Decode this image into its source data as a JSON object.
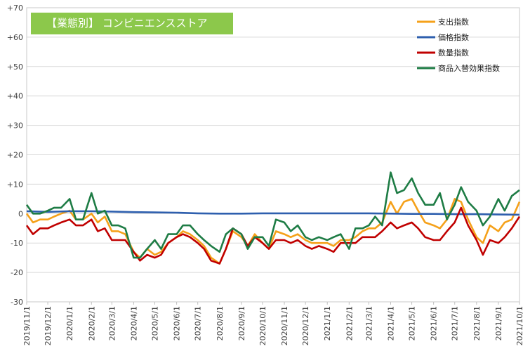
{
  "chart_data": {
    "type": "line",
    "title": "【業態別】 コンビニエンスストア",
    "ylim": [
      -30,
      70
    ],
    "y_ticks": [
      "+70",
      "+60",
      "+50",
      "+40",
      "+30",
      "+20",
      "+10",
      "0",
      "-10",
      "-20",
      "-30"
    ],
    "x_tick_labels": [
      "2019/11/1",
      "2019/12/1",
      "2020/1/1",
      "2020/2/1",
      "2020/3/1",
      "2020/4/1",
      "2020/5/1",
      "2020/6/1",
      "2020/7/1",
      "2020/8/1",
      "2020/9/1",
      "2020/10/1",
      "2020/11/1",
      "2020/12/1",
      "2021/1/1",
      "2021/2/1",
      "2021/3/1",
      "2021/4/1",
      "2021/5/1",
      "2021/6/1",
      "2021/7/1",
      "2021/8/1",
      "2021/9/1",
      "2021/10/1"
    ],
    "x_start": "2019/11/1",
    "x_end": "2021/10/1",
    "grid": true,
    "legend_position": "top-right",
    "series": [
      {
        "name": "支出指数",
        "color": "#f5a11a",
        "points": [
          [
            "2019/11/1",
            0
          ],
          [
            "2019/11/10",
            -3
          ],
          [
            "2019/11/20",
            -2
          ],
          [
            "2019/12/1",
            -2
          ],
          [
            "2019/12/10",
            -1
          ],
          [
            "2019/12/20",
            0
          ],
          [
            "2020/1/1",
            1
          ],
          [
            "2020/1/10",
            -2
          ],
          [
            "2020/1/20",
            -2
          ],
          [
            "2020/2/1",
            0
          ],
          [
            "2020/2/10",
            -3
          ],
          [
            "2020/2/20",
            -1
          ],
          [
            "2020/3/1",
            -6
          ],
          [
            "2020/3/10",
            -6
          ],
          [
            "2020/3/20",
            -7
          ],
          [
            "2020/4/1",
            -13
          ],
          [
            "2020/4/10",
            -15
          ],
          [
            "2020/4/20",
            -12
          ],
          [
            "2020/5/1",
            -14
          ],
          [
            "2020/5/10",
            -13
          ],
          [
            "2020/5/20",
            -10
          ],
          [
            "2020/6/1",
            -8
          ],
          [
            "2020/6/10",
            -6
          ],
          [
            "2020/6/20",
            -7
          ],
          [
            "2020/7/1",
            -9
          ],
          [
            "2020/7/10",
            -11
          ],
          [
            "2020/7/20",
            -15
          ],
          [
            "2020/8/1",
            -17
          ],
          [
            "2020/8/10",
            -12
          ],
          [
            "2020/8/20",
            -6
          ],
          [
            "2020/9/1",
            -8
          ],
          [
            "2020/9/10",
            -11
          ],
          [
            "2020/9/20",
            -7
          ],
          [
            "2020/10/1",
            -10
          ],
          [
            "2020/10/10",
            -12
          ],
          [
            "2020/10/20",
            -6
          ],
          [
            "2020/11/1",
            -7
          ],
          [
            "2020/11/10",
            -8
          ],
          [
            "2020/11/20",
            -7
          ],
          [
            "2020/12/1",
            -9
          ],
          [
            "2020/12/10",
            -10
          ],
          [
            "2020/12/20",
            -10
          ],
          [
            "2021/1/1",
            -10
          ],
          [
            "2021/1/10",
            -11
          ],
          [
            "2021/1/20",
            -9
          ],
          [
            "2021/2/1",
            -9
          ],
          [
            "2021/2/10",
            -8
          ],
          [
            "2021/2/20",
            -6
          ],
          [
            "2021/3/1",
            -5
          ],
          [
            "2021/3/10",
            -5
          ],
          [
            "2021/3/20",
            -3
          ],
          [
            "2021/4/1",
            4
          ],
          [
            "2021/4/10",
            0
          ],
          [
            "2021/4/20",
            4
          ],
          [
            "2021/5/1",
            5
          ],
          [
            "2021/5/10",
            1
          ],
          [
            "2021/5/20",
            -3
          ],
          [
            "2021/6/1",
            -4
          ],
          [
            "2021/6/10",
            -5
          ],
          [
            "2021/6/20",
            -2
          ],
          [
            "2021/7/1",
            5
          ],
          [
            "2021/7/10",
            4
          ],
          [
            "2021/7/20",
            -2
          ],
          [
            "2021/8/1",
            -8
          ],
          [
            "2021/8/10",
            -10
          ],
          [
            "2021/8/20",
            -4
          ],
          [
            "2021/9/1",
            -6
          ],
          [
            "2021/9/10",
            -3
          ],
          [
            "2021/9/20",
            -2
          ],
          [
            "2021/10/1",
            4
          ]
        ]
      },
      {
        "name": "価格指数",
        "color": "#2e5fae",
        "points": [
          [
            "2019/11/1",
            0.8
          ],
          [
            "2019/12/1",
            0.6
          ],
          [
            "2020/1/1",
            0.8
          ],
          [
            "2020/2/1",
            0.8
          ],
          [
            "2020/3/1",
            0.7
          ],
          [
            "2020/4/1",
            0.5
          ],
          [
            "2020/5/1",
            0.4
          ],
          [
            "2020/6/1",
            0.3
          ],
          [
            "2020/7/1",
            0.1
          ],
          [
            "2020/8/1",
            0
          ],
          [
            "2020/9/1",
            0
          ],
          [
            "2020/10/1",
            0.1
          ],
          [
            "2020/11/1",
            0.1
          ],
          [
            "2020/12/1",
            0.1
          ],
          [
            "2021/1/1",
            0.1
          ],
          [
            "2021/2/1",
            0.1
          ],
          [
            "2021/3/1",
            0.1
          ],
          [
            "2021/4/1",
            0
          ],
          [
            "2021/5/1",
            -0.1
          ],
          [
            "2021/6/1",
            -0.1
          ],
          [
            "2021/7/1",
            -0.2
          ],
          [
            "2021/8/1",
            -0.2
          ],
          [
            "2021/9/1",
            -0.3
          ],
          [
            "2021/10/1",
            -0.4
          ]
        ]
      },
      {
        "name": "数量指数",
        "color": "#c00000",
        "points": [
          [
            "2019/11/1",
            -4
          ],
          [
            "2019/11/10",
            -7
          ],
          [
            "2019/11/20",
            -5
          ],
          [
            "2019/12/1",
            -5
          ],
          [
            "2019/12/10",
            -4
          ],
          [
            "2019/12/20",
            -3
          ],
          [
            "2020/1/1",
            -2
          ],
          [
            "2020/1/10",
            -4
          ],
          [
            "2020/1/20",
            -4
          ],
          [
            "2020/2/1",
            -2
          ],
          [
            "2020/2/10",
            -6
          ],
          [
            "2020/2/20",
            -5
          ],
          [
            "2020/3/1",
            -9
          ],
          [
            "2020/3/10",
            -9
          ],
          [
            "2020/3/20",
            -9
          ],
          [
            "2020/4/1",
            -13
          ],
          [
            "2020/4/10",
            -16
          ],
          [
            "2020/4/20",
            -14
          ],
          [
            "2020/5/1",
            -15
          ],
          [
            "2020/5/10",
            -14
          ],
          [
            "2020/5/20",
            -10
          ],
          [
            "2020/6/1",
            -8
          ],
          [
            "2020/6/10",
            -7
          ],
          [
            "2020/6/20",
            -8
          ],
          [
            "2020/7/1",
            -10
          ],
          [
            "2020/7/10",
            -12
          ],
          [
            "2020/7/20",
            -16
          ],
          [
            "2020/8/1",
            -17
          ],
          [
            "2020/8/10",
            -12
          ],
          [
            "2020/8/20",
            -5
          ],
          [
            "2020/9/1",
            -7
          ],
          [
            "2020/9/10",
            -11
          ],
          [
            "2020/9/20",
            -8
          ],
          [
            "2020/10/1",
            -10
          ],
          [
            "2020/10/10",
            -12
          ],
          [
            "2020/10/20",
            -9
          ],
          [
            "2020/11/1",
            -9
          ],
          [
            "2020/11/10",
            -10
          ],
          [
            "2020/11/20",
            -9
          ],
          [
            "2020/12/1",
            -11
          ],
          [
            "2020/12/10",
            -12
          ],
          [
            "2020/12/20",
            -11
          ],
          [
            "2021/1/1",
            -12
          ],
          [
            "2021/1/10",
            -13
          ],
          [
            "2021/1/20",
            -10
          ],
          [
            "2021/2/1",
            -10
          ],
          [
            "2021/2/10",
            -10
          ],
          [
            "2021/2/20",
            -8
          ],
          [
            "2021/3/1",
            -8
          ],
          [
            "2021/3/10",
            -8
          ],
          [
            "2021/3/20",
            -6
          ],
          [
            "2021/4/1",
            -3
          ],
          [
            "2021/4/10",
            -5
          ],
          [
            "2021/4/20",
            -4
          ],
          [
            "2021/5/1",
            -3
          ],
          [
            "2021/5/10",
            -5
          ],
          [
            "2021/5/20",
            -8
          ],
          [
            "2021/6/1",
            -9
          ],
          [
            "2021/6/10",
            -9
          ],
          [
            "2021/6/20",
            -6
          ],
          [
            "2021/7/1",
            -3
          ],
          [
            "2021/7/10",
            2
          ],
          [
            "2021/7/20",
            -4
          ],
          [
            "2021/8/1",
            -9
          ],
          [
            "2021/8/10",
            -14
          ],
          [
            "2021/8/20",
            -9
          ],
          [
            "2021/9/1",
            -10
          ],
          [
            "2021/9/10",
            -8
          ],
          [
            "2021/9/20",
            -5
          ],
          [
            "2021/10/1",
            -1
          ]
        ]
      },
      {
        "name": "商品入替効果指数",
        "color": "#1e7c45",
        "points": [
          [
            "2019/11/1",
            3
          ],
          [
            "2019/11/10",
            0
          ],
          [
            "2019/11/20",
            0
          ],
          [
            "2019/12/1",
            1
          ],
          [
            "2019/12/10",
            2
          ],
          [
            "2019/12/20",
            2
          ],
          [
            "2020/1/1",
            5
          ],
          [
            "2020/1/10",
            -2
          ],
          [
            "2020/1/20",
            -2
          ],
          [
            "2020/2/1",
            7
          ],
          [
            "2020/2/10",
            0
          ],
          [
            "2020/2/20",
            1
          ],
          [
            "2020/3/1",
            -4
          ],
          [
            "2020/3/10",
            -4
          ],
          [
            "2020/3/20",
            -5
          ],
          [
            "2020/4/1",
            -15
          ],
          [
            "2020/4/10",
            -15
          ],
          [
            "2020/4/20",
            -12
          ],
          [
            "2020/5/1",
            -9
          ],
          [
            "2020/5/10",
            -12
          ],
          [
            "2020/5/20",
            -7
          ],
          [
            "2020/6/1",
            -7
          ],
          [
            "2020/6/10",
            -4
          ],
          [
            "2020/6/20",
            -4
          ],
          [
            "2020/7/1",
            -7
          ],
          [
            "2020/7/10",
            -9
          ],
          [
            "2020/7/20",
            -11
          ],
          [
            "2020/8/1",
            -13
          ],
          [
            "2020/8/10",
            -7
          ],
          [
            "2020/8/20",
            -5
          ],
          [
            "2020/9/1",
            -7
          ],
          [
            "2020/9/10",
            -12
          ],
          [
            "2020/9/20",
            -8
          ],
          [
            "2020/10/1",
            -8
          ],
          [
            "2020/10/10",
            -11
          ],
          [
            "2020/10/20",
            -2
          ],
          [
            "2020/11/1",
            -3
          ],
          [
            "2020/11/10",
            -6
          ],
          [
            "2020/11/20",
            -4
          ],
          [
            "2020/12/1",
            -8
          ],
          [
            "2020/12/10",
            -9
          ],
          [
            "2020/12/20",
            -8
          ],
          [
            "2021/1/1",
            -9
          ],
          [
            "2021/1/10",
            -8
          ],
          [
            "2021/1/20",
            -7
          ],
          [
            "2021/2/1",
            -12
          ],
          [
            "2021/2/10",
            -5
          ],
          [
            "2021/2/20",
            -5
          ],
          [
            "2021/3/1",
            -4
          ],
          [
            "2021/3/10",
            -1
          ],
          [
            "2021/3/20",
            -4
          ],
          [
            "2021/4/1",
            14
          ],
          [
            "2021/4/10",
            7
          ],
          [
            "2021/4/20",
            8
          ],
          [
            "2021/5/1",
            12
          ],
          [
            "2021/5/10",
            7
          ],
          [
            "2021/5/20",
            3
          ],
          [
            "2021/6/1",
            3
          ],
          [
            "2021/6/10",
            7
          ],
          [
            "2021/6/20",
            -2
          ],
          [
            "2021/7/1",
            3
          ],
          [
            "2021/7/10",
            9
          ],
          [
            "2021/7/20",
            4
          ],
          [
            "2021/8/1",
            1
          ],
          [
            "2021/8/10",
            -4
          ],
          [
            "2021/8/20",
            -1
          ],
          [
            "2021/9/1",
            5
          ],
          [
            "2021/9/10",
            1
          ],
          [
            "2021/9/20",
            6
          ],
          [
            "2021/10/1",
            8
          ]
        ]
      }
    ]
  }
}
